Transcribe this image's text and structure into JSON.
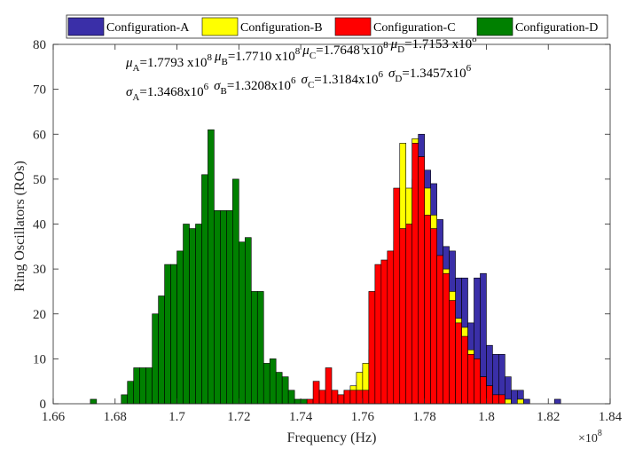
{
  "chart_data": {
    "type": "bar",
    "subtype": "overlapping-histogram",
    "xlabel": "Frequency (Hz)",
    "ylabel": "Ring Oscillators (ROs)",
    "x_multiplier": "×10",
    "x_multiplier_exp": "8",
    "xlim": [
      1.66,
      1.84
    ],
    "ylim": [
      0,
      80
    ],
    "xticks": [
      "1.66",
      "1.68",
      "1.7",
      "1.72",
      "1.74",
      "1.76",
      "1.78",
      "1.8",
      "1.82",
      "1.84"
    ],
    "yticks": [
      "0",
      "10",
      "20",
      "30",
      "40",
      "50",
      "60",
      "70",
      "80"
    ],
    "bin_width": 0.002,
    "legend_position": "top",
    "annotations": {
      "mu_line": [
        {
          "sym": "μ",
          "sub": "A",
          "text": "=1.7793 x10",
          "sup": "8"
        },
        {
          "sym": "μ",
          "sub": "B",
          "text": "=1.7710 x10",
          "sup": "8"
        },
        {
          "sym": "μ",
          "sub": "C",
          "text": "=1.7648 x10",
          "sup": "8"
        },
        {
          "sym": "μ",
          "sub": "D",
          "text": "=1.7153 x10",
          "sup": "8"
        }
      ],
      "sigma_line": [
        {
          "sym": "σ",
          "sub": "A",
          "text": "=1.3468x10",
          "sup": "6"
        },
        {
          "sym": "σ",
          "sub": "B",
          "text": "=1.3208x10",
          "sup": "6"
        },
        {
          "sym": "σ",
          "sub": "C",
          "text": "=1.3184x10",
          "sup": "6"
        },
        {
          "sym": "σ",
          "sub": "D",
          "text": "=1.3457x10",
          "sup": "6"
        }
      ]
    },
    "series": [
      {
        "name": "Configuration-A",
        "color": "#3a2fa8",
        "bins": [
          [
            1.748,
            1
          ],
          [
            1.75,
            2
          ],
          [
            1.752,
            1
          ],
          [
            1.754,
            2
          ],
          [
            1.756,
            3
          ],
          [
            1.758,
            5
          ],
          [
            1.76,
            8
          ],
          [
            1.762,
            10
          ],
          [
            1.764,
            14
          ],
          [
            1.766,
            18
          ],
          [
            1.768,
            22
          ],
          [
            1.77,
            28
          ],
          [
            1.772,
            35
          ],
          [
            1.774,
            42
          ],
          [
            1.776,
            50
          ],
          [
            1.778,
            60
          ],
          [
            1.78,
            52
          ],
          [
            1.782,
            49
          ],
          [
            1.784,
            41
          ],
          [
            1.786,
            35
          ],
          [
            1.788,
            34
          ],
          [
            1.79,
            28
          ],
          [
            1.792,
            28
          ],
          [
            1.794,
            18
          ],
          [
            1.796,
            28
          ],
          [
            1.798,
            29
          ],
          [
            1.8,
            13
          ],
          [
            1.802,
            11
          ],
          [
            1.804,
            11
          ],
          [
            1.806,
            6
          ],
          [
            1.808,
            3
          ],
          [
            1.81,
            3
          ],
          [
            1.812,
            1
          ],
          [
            1.822,
            1
          ]
        ]
      },
      {
        "name": "Configuration-B",
        "color": "#ffff00",
        "bins": [
          [
            1.748,
            1
          ],
          [
            1.75,
            1
          ],
          [
            1.752,
            2
          ],
          [
            1.754,
            3
          ],
          [
            1.756,
            4
          ],
          [
            1.758,
            7
          ],
          [
            1.76,
            9
          ],
          [
            1.762,
            12
          ],
          [
            1.764,
            17
          ],
          [
            1.766,
            21
          ],
          [
            1.768,
            27
          ],
          [
            1.77,
            36
          ],
          [
            1.772,
            58
          ],
          [
            1.774,
            48
          ],
          [
            1.776,
            59
          ],
          [
            1.778,
            55
          ],
          [
            1.78,
            48
          ],
          [
            1.782,
            42
          ],
          [
            1.784,
            29
          ],
          [
            1.786,
            30
          ],
          [
            1.788,
            25
          ],
          [
            1.79,
            19
          ],
          [
            1.792,
            17
          ],
          [
            1.794,
            12
          ],
          [
            1.796,
            10
          ],
          [
            1.798,
            6
          ],
          [
            1.8,
            4
          ],
          [
            1.802,
            2
          ],
          [
            1.804,
            1
          ],
          [
            1.806,
            1
          ],
          [
            1.81,
            1
          ]
        ]
      },
      {
        "name": "Configuration-C",
        "color": "#ff0000",
        "bins": [
          [
            1.742,
            1
          ],
          [
            1.744,
            5
          ],
          [
            1.746,
            3
          ],
          [
            1.748,
            8
          ],
          [
            1.75,
            3
          ],
          [
            1.752,
            2
          ],
          [
            1.754,
            3
          ],
          [
            1.756,
            3
          ],
          [
            1.758,
            3
          ],
          [
            1.76,
            3
          ],
          [
            1.762,
            25
          ],
          [
            1.764,
            31
          ],
          [
            1.766,
            32
          ],
          [
            1.768,
            34
          ],
          [
            1.77,
            48
          ],
          [
            1.772,
            39
          ],
          [
            1.774,
            40
          ],
          [
            1.776,
            58
          ],
          [
            1.778,
            55
          ],
          [
            1.78,
            42
          ],
          [
            1.782,
            39
          ],
          [
            1.784,
            33
          ],
          [
            1.786,
            29
          ],
          [
            1.788,
            23
          ],
          [
            1.79,
            18
          ],
          [
            1.792,
            15
          ],
          [
            1.794,
            11
          ],
          [
            1.796,
            10
          ],
          [
            1.798,
            6
          ],
          [
            1.8,
            4
          ],
          [
            1.802,
            2
          ],
          [
            1.804,
            2
          ]
        ]
      },
      {
        "name": "Configuration-D",
        "color": "#008000",
        "bins": [
          [
            1.672,
            1
          ],
          [
            1.682,
            2
          ],
          [
            1.684,
            5
          ],
          [
            1.686,
            8
          ],
          [
            1.688,
            8
          ],
          [
            1.69,
            8
          ],
          [
            1.692,
            20
          ],
          [
            1.694,
            24
          ],
          [
            1.696,
            31
          ],
          [
            1.698,
            31
          ],
          [
            1.7,
            34
          ],
          [
            1.702,
            40
          ],
          [
            1.704,
            39
          ],
          [
            1.706,
            40
          ],
          [
            1.708,
            51
          ],
          [
            1.71,
            61
          ],
          [
            1.712,
            43
          ],
          [
            1.714,
            43
          ],
          [
            1.716,
            43
          ],
          [
            1.718,
            50
          ],
          [
            1.72,
            36
          ],
          [
            1.722,
            37
          ],
          [
            1.724,
            25
          ],
          [
            1.726,
            25
          ],
          [
            1.728,
            9
          ],
          [
            1.73,
            10
          ],
          [
            1.732,
            7
          ],
          [
            1.734,
            6
          ],
          [
            1.736,
            3
          ],
          [
            1.738,
            1
          ],
          [
            1.74,
            1
          ]
        ]
      }
    ]
  }
}
